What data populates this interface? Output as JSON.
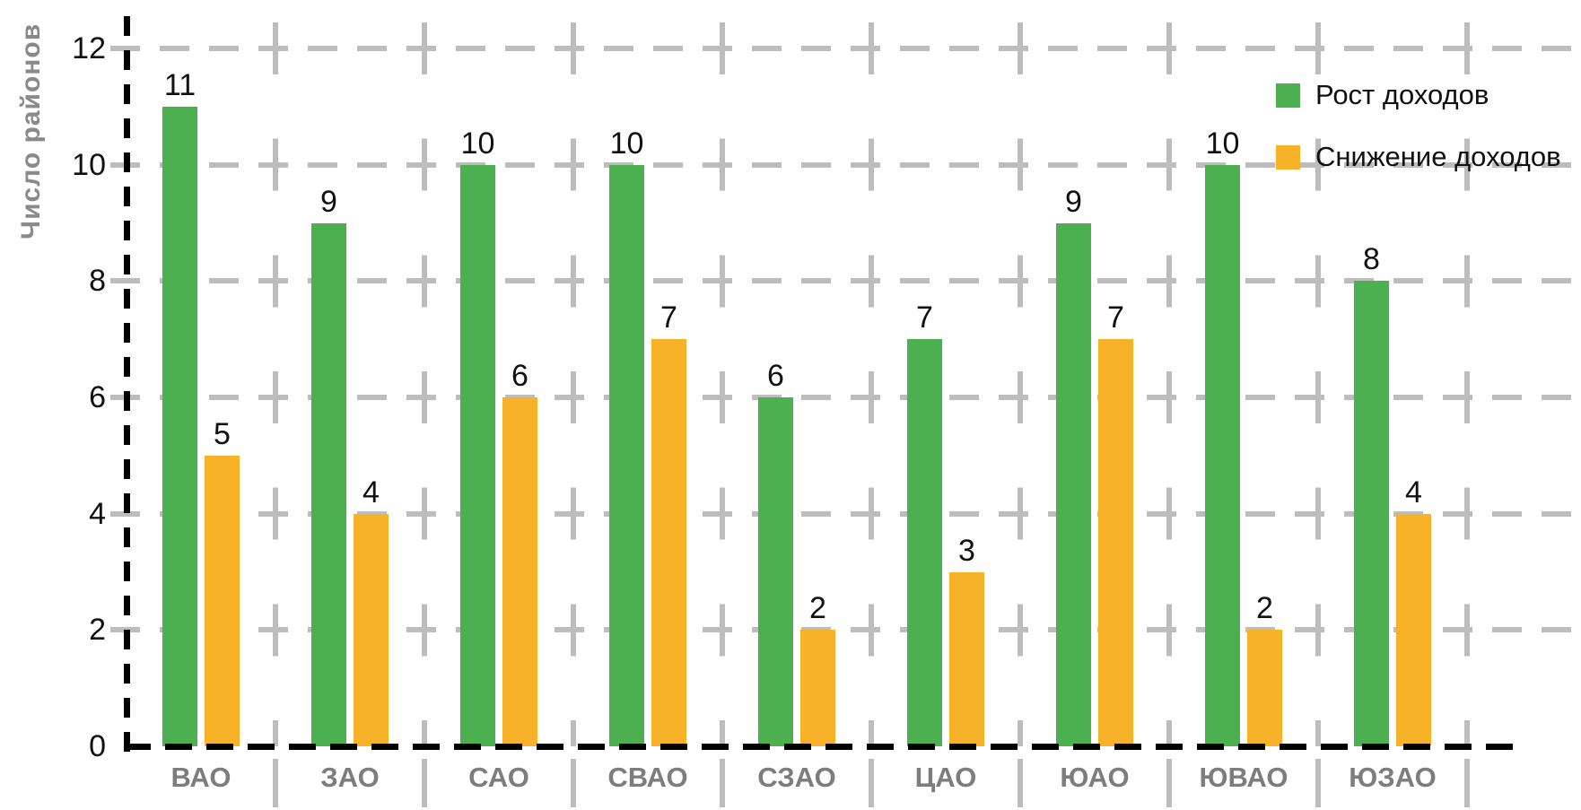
{
  "page": {
    "background": "#ffffff"
  },
  "y_axis_title": "Число районов",
  "colors": {
    "grid": "#bdbdbd",
    "axis": "#000000",
    "category_text": "#7d7d7d",
    "axis_title_text": "#8a8a8a",
    "value_text": "#111111",
    "series_growth": "#4caf50",
    "series_decline": "#f7b22a"
  },
  "chart_data": {
    "type": "bar",
    "title": "",
    "xlabel": "",
    "ylabel": "Число районов",
    "categories": [
      "ВАО",
      "ЗАО",
      "САО",
      "СВАО",
      "СЗАО",
      "ЦАО",
      "ЮАО",
      "ЮВАО",
      "ЮЗАО"
    ],
    "series": [
      {
        "name": "Рост доходов",
        "color": "#4caf50",
        "values": [
          11,
          9,
          10,
          10,
          6,
          7,
          9,
          10,
          8
        ]
      },
      {
        "name": "Снижение доходов",
        "color": "#f7b22a",
        "values": [
          5,
          4,
          6,
          7,
          2,
          3,
          7,
          2,
          4
        ]
      }
    ],
    "ylim": [
      0,
      12
    ],
    "yticks": [
      0,
      2,
      4,
      6,
      8,
      10,
      12
    ],
    "grid": "dashed",
    "axis_style": "dashed-black",
    "legend_position": "top-right",
    "bar_value_labels": true
  }
}
